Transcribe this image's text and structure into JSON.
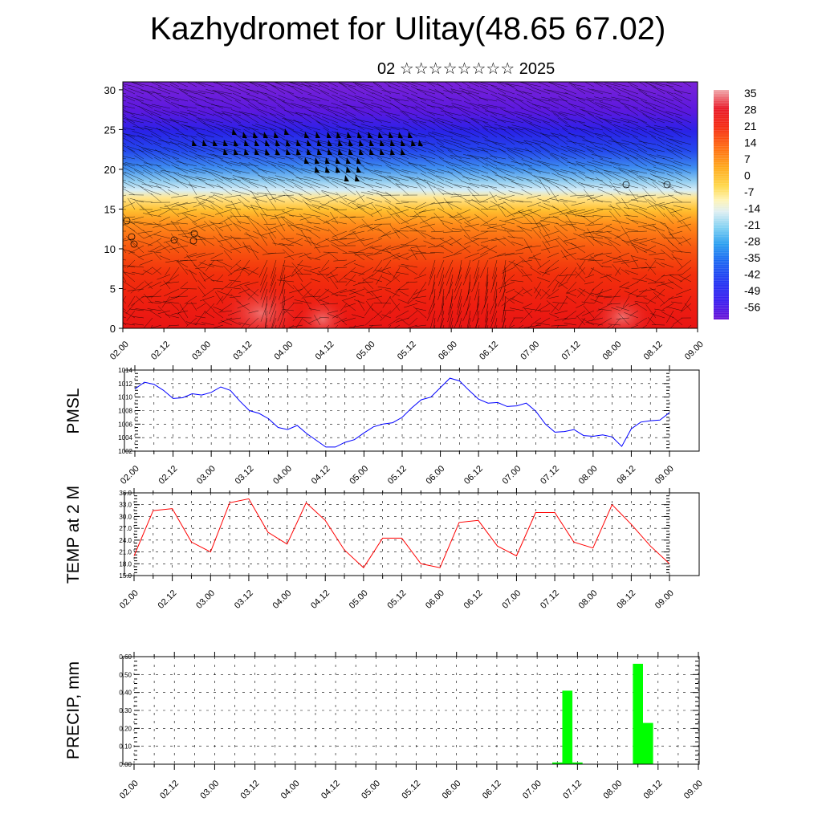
{
  "title": "Kazhydromet for Ulitay(48.65 67.02)",
  "subtitle": "02 ☆☆☆☆☆☆☆☆ 2025",
  "time_labels": [
    "02.00",
    "02.12",
    "03.00",
    "03.12",
    "04.00",
    "04.12",
    "05.00",
    "05.12",
    "06.00",
    "06.12",
    "07.00",
    "07.12",
    "08.00",
    "08.12",
    "09.00"
  ],
  "colors": {
    "pmsl_line": "#0000ff",
    "temp_line": "#ff0000",
    "precip_bar": "#00ff00",
    "wind_barb": "#000000"
  },
  "chart_data": [
    {
      "type": "heatmap",
      "title": "",
      "xlabel": "",
      "ylabel": "",
      "x_categories": [
        "02.00",
        "02.12",
        "03.00",
        "03.12",
        "04.00",
        "04.12",
        "05.00",
        "05.12",
        "06.00",
        "06.12",
        "07.00",
        "07.12",
        "08.00",
        "08.12",
        "09.00"
      ],
      "ylim": [
        0,
        31
      ],
      "y_ticks": [
        0,
        5,
        10,
        15,
        20,
        25,
        30
      ],
      "colorbar": {
        "labels": [
          "35",
          "28",
          "21",
          "14",
          "7",
          "0",
          "-7",
          "-14",
          "-21",
          "-28",
          "-35",
          "-42",
          "-49",
          "-56"
        ],
        "min": -63,
        "max": 42
      },
      "temperature_by_level": [
        {
          "level": 0,
          "value": 25
        },
        {
          "level": 3,
          "value": 22
        },
        {
          "level": 6,
          "value": 18
        },
        {
          "level": 10,
          "value": 10
        },
        {
          "level": 13,
          "value": 4
        },
        {
          "level": 15,
          "value": -3
        },
        {
          "level": 17,
          "value": -10
        },
        {
          "level": 19,
          "value": -22
        },
        {
          "level": 21,
          "value": -33
        },
        {
          "level": 23,
          "value": -40
        },
        {
          "level": 25,
          "value": -45
        },
        {
          "level": 27,
          "value": -50
        },
        {
          "level": 31,
          "value": -58
        }
      ],
      "overlay": "wind barbs"
    },
    {
      "type": "line",
      "ylabel": "PMSL",
      "ylim": [
        1002,
        1014
      ],
      "y_ticks": [
        "1002",
        "1004",
        "1006",
        "1008",
        "1010",
        "1012",
        "1014"
      ],
      "categories": [
        "02.00",
        "02.12",
        "03.00",
        "03.12",
        "04.00",
        "04.12",
        "05.00",
        "05.12",
        "06.00",
        "06.12",
        "07.00",
        "07.12",
        "08.00",
        "08.12",
        "09.00"
      ],
      "x": [
        0,
        3,
        6,
        9,
        12,
        15,
        18,
        21,
        24,
        27,
        30,
        33,
        36,
        39,
        42,
        45,
        48,
        51,
        54,
        57,
        60,
        63,
        66,
        69,
        72,
        75,
        78,
        81,
        84,
        87,
        90,
        93,
        96,
        99,
        102,
        105,
        108,
        111,
        114,
        117,
        120,
        123,
        126,
        129,
        132,
        135,
        138,
        141,
        144,
        147,
        150,
        153,
        156,
        159,
        162,
        165,
        168
      ],
      "values": [
        1011.2,
        1012.2,
        1011.9,
        1011.0,
        1009.8,
        1009.9,
        1010.5,
        1010.3,
        1010.7,
        1011.5,
        1011.0,
        1009.4,
        1008.0,
        1007.6,
        1006.8,
        1005.5,
        1005.2,
        1005.8,
        1004.6,
        1003.6,
        1002.6,
        1002.6,
        1003.3,
        1003.7,
        1004.7,
        1005.6,
        1006.0,
        1006.2,
        1007.0,
        1008.4,
        1009.6,
        1010.0,
        1011.4,
        1012.8,
        1012.4,
        1011.0,
        1009.7,
        1009.1,
        1009.2,
        1008.6,
        1008.7,
        1009.1,
        1007.9,
        1006.0,
        1004.8,
        1004.9,
        1005.2,
        1004.3,
        1004.2,
        1004.4,
        1004.1,
        1002.7,
        1005.3,
        1006.3,
        1006.5,
        1006.6,
        1007.7
      ]
    },
    {
      "type": "line",
      "ylabel": "TEMP at 2 M",
      "ylim": [
        15,
        36
      ],
      "y_ticks": [
        "15.0",
        "18.0",
        "21.0",
        "24.0",
        "27.0",
        "30.0",
        "33.0",
        "36.0"
      ],
      "categories": [
        "02.00",
        "02.12",
        "03.00",
        "03.12",
        "04.00",
        "04.12",
        "05.00",
        "05.12",
        "06.00",
        "06.12",
        "07.00",
        "07.12",
        "08.00",
        "08.12",
        "09.00"
      ],
      "x": [
        0,
        6,
        12,
        18,
        24,
        30,
        36,
        42,
        48,
        54,
        60,
        66,
        72,
        78,
        84,
        90,
        96,
        102,
        108,
        114,
        120,
        126,
        132,
        138,
        144,
        150,
        156,
        162,
        168
      ],
      "values": [
        20.0,
        31.5,
        32.0,
        23.5,
        21.0,
        33.5,
        34.5,
        26.0,
        23.0,
        33.5,
        29.0,
        21.5,
        17.0,
        24.5,
        24.5,
        18.0,
        17.0,
        28.5,
        29.0,
        22.5,
        20.0,
        31.0,
        31.0,
        23.5,
        22.0,
        33.0,
        28.0,
        22.5,
        18.0
      ]
    },
    {
      "type": "bar",
      "ylabel": "PRECIP, mm",
      "ylim": [
        0,
        0.6
      ],
      "y_ticks": [
        "0.00",
        "0.10",
        "0.20",
        "0.30",
        "0.40",
        "0.50",
        "0.60"
      ],
      "categories": [
        "02.00",
        "02.12",
        "03.00",
        "03.12",
        "04.00",
        "04.12",
        "05.00",
        "05.12",
        "06.00",
        "06.12",
        "07.00",
        "07.12",
        "08.00",
        "08.12",
        "09.00"
      ],
      "x": [
        126,
        129,
        132,
        150,
        153
      ],
      "values": [
        0.01,
        0.41,
        0.01,
        0.56,
        0.23
      ]
    }
  ]
}
